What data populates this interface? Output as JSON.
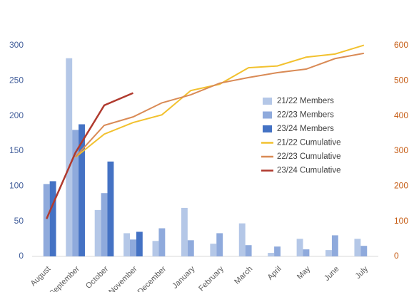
{
  "chart_data": {
    "type": "bar-line",
    "categories": [
      "August",
      "September",
      "October",
      "November",
      "December",
      "January",
      "February",
      "March",
      "April",
      "May",
      "June",
      "July"
    ],
    "series": [
      {
        "name": "21/22 Members",
        "type": "bar",
        "color": "#b4c7e7",
        "values": [
          null,
          282,
          66,
          33,
          22,
          69,
          18,
          47,
          5,
          25,
          9,
          25
        ]
      },
      {
        "name": "22/23 Members",
        "type": "bar",
        "color": "#8faadc",
        "values": [
          103,
          180,
          90,
          24,
          40,
          23,
          33,
          16,
          14,
          10,
          30,
          15
        ]
      },
      {
        "name": "23/24 Members",
        "type": "bar",
        "color": "#4472c4",
        "values": [
          107,
          188,
          135,
          35,
          null,
          null,
          null,
          null,
          null,
          null,
          null,
          null
        ]
      },
      {
        "name": "21/22 Cumulative",
        "type": "line",
        "axis": "y2",
        "color": "#f2c12e",
        "values": [
          null,
          282,
          348,
          381,
          403,
          472,
          490,
          537,
          542,
          567,
          576,
          601
        ]
      },
      {
        "name": "22/23 Cumulative",
        "type": "line",
        "axis": "y2",
        "color": "#d98a55",
        "values": [
          null,
          283,
          373,
          397,
          437,
          460,
          493,
          509,
          523,
          533,
          563,
          578
        ]
      },
      {
        "name": "23/24 Cumulative",
        "type": "line",
        "axis": "y2",
        "color": "#b03a2e",
        "values": [
          107,
          295,
          430,
          465,
          null,
          null,
          null,
          null,
          null,
          null,
          null,
          null
        ]
      }
    ],
    "ylim": [
      0,
      300
    ],
    "yticks": [
      0,
      50,
      100,
      150,
      200,
      250,
      300
    ],
    "y2lim": [
      0,
      600
    ],
    "y2ticks": [
      0,
      100,
      200,
      300,
      400,
      500,
      600
    ],
    "grid": false,
    "legend": "right"
  }
}
